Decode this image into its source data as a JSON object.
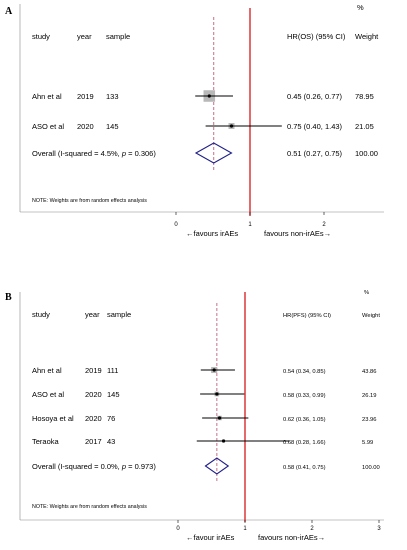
{
  "chart_data": [
    {
      "type": "forest",
      "panel_label": "A",
      "columns": {
        "study": "study",
        "year": "year",
        "sample": "sample",
        "effect": "HR(OS) (95% CI)",
        "weight_pct": "%",
        "weight": "Weight"
      },
      "rows": [
        {
          "study": "Ahn et al",
          "year": "2019",
          "sample": "133",
          "hr": 0.45,
          "lo": 0.26,
          "hi": 0.77,
          "ci_text": "0.45 (0.26, 0.77)",
          "weight": "78.95"
        },
        {
          "study": "ASO et al",
          "year": "2020",
          "sample": "145",
          "hr": 0.75,
          "lo": 0.4,
          "hi": 1.43,
          "ci_text": "0.75 (0.40, 1.43)",
          "weight": "21.05"
        }
      ],
      "overall": {
        "label": "Overall  (I-squared = 4.5%, ",
        "p_label": "p",
        "p_text": " = 0.306)",
        "hr": 0.51,
        "lo": 0.27,
        "hi": 0.75,
        "ci_text": "0.51 (0.27, 0.75)",
        "weight": "100.00"
      },
      "note": "NOTE: Weights are from random effects analysis",
      "xticks": [
        "0",
        "1",
        "2"
      ],
      "xlim": [
        0,
        2.1
      ],
      "null_line": 1,
      "left_label": "←favours irAEs",
      "right_label": "favours non-irAEs→"
    },
    {
      "type": "forest",
      "panel_label": "B",
      "columns": {
        "study": "study",
        "year": "year",
        "sample": "sample",
        "effect": "HR(PFS) (95% CI)",
        "weight_pct": "%",
        "weight": "Weight"
      },
      "rows": [
        {
          "study": "Ahn et al",
          "year": "2019",
          "sample": "111",
          "hr": 0.54,
          "lo": 0.34,
          "hi": 0.85,
          "ci_text": "0.54 (0.34, 0.85)",
          "weight": "43.86"
        },
        {
          "study": "ASO et al",
          "year": "2020",
          "sample": "145",
          "hr": 0.58,
          "lo": 0.33,
          "hi": 0.99,
          "ci_text": "0.58 (0.33, 0.99)",
          "weight": "26.19"
        },
        {
          "study": "Hosoya et al",
          "year": "2020",
          "sample": "76",
          "hr": 0.62,
          "lo": 0.36,
          "hi": 1.05,
          "ci_text": "0.62 (0.36, 1.05)",
          "weight": "23.96"
        },
        {
          "study": "Teraoka",
          "year": "2017",
          "sample": "43",
          "hr": 0.68,
          "lo": 0.28,
          "hi": 1.66,
          "ci_text": "0.68 (0.28, 1.66)",
          "weight": "5.99"
        }
      ],
      "overall": {
        "label": "Overall  (I-squared = 0.0%, ",
        "p_label": "p",
        "p_text": " = 0.973)",
        "hr": 0.58,
        "lo": 0.41,
        "hi": 0.75,
        "ci_text": "0.58 (0.41, 0.75)",
        "weight": "100.00"
      },
      "note": "NOTE: Weights are from random effects analysis",
      "xticks": [
        "0",
        "1",
        "2",
        "3"
      ],
      "xlim": [
        0,
        3.1
      ],
      "null_line": 1,
      "left_label": "←favour irAEs",
      "right_label": "favours non-irAEs→"
    }
  ],
  "colors": {
    "null_line": "#d7191c",
    "diamond": "#1f1f8a",
    "ref_line": "#c0607a",
    "box": "#b8b8b8",
    "frame": "#888888"
  }
}
